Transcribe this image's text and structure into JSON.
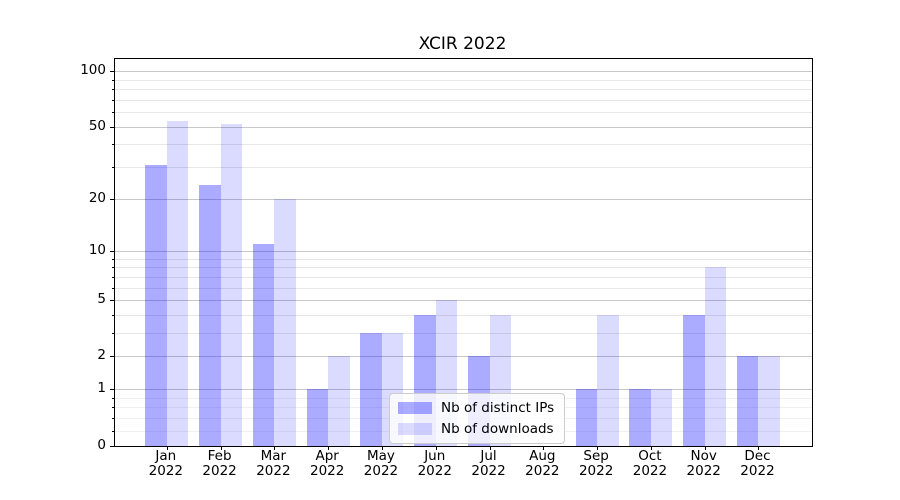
{
  "title": "XCIR 2022",
  "chart_data": {
    "type": "bar",
    "title": "XCIR 2022",
    "categories": [
      "Jan",
      "Feb",
      "Mar",
      "Apr",
      "May",
      "Jun",
      "Jul",
      "Aug",
      "Sep",
      "Oct",
      "Nov",
      "Dec"
    ],
    "year_label": "2022",
    "series": [
      {
        "name": "Nb of distinct IPs",
        "color": "rgba(0,0,255,0.33)",
        "values": [
          31,
          24,
          11,
          1,
          3,
          4,
          2,
          0,
          1,
          1,
          4,
          2
        ]
      },
      {
        "name": "Nb of downloads",
        "color": "rgba(0,0,255,0.14)",
        "values": [
          54,
          52,
          20,
          2,
          3,
          5,
          4,
          0,
          4,
          1,
          8,
          2
        ]
      }
    ],
    "xlabel": "",
    "ylabel": "",
    "y_scale": "log10(value+1)",
    "y_major_ticks": [
      0,
      1,
      2,
      5,
      10,
      20,
      50,
      100
    ],
    "y_minor_ticks": [
      0.2,
      0.4,
      0.6,
      0.8,
      3,
      4,
      6,
      7,
      8,
      9,
      30,
      40,
      60,
      70,
      80,
      90
    ],
    "ylim": [
      0,
      117
    ],
    "grid": "horizontal",
    "legend_position": "lower center"
  }
}
